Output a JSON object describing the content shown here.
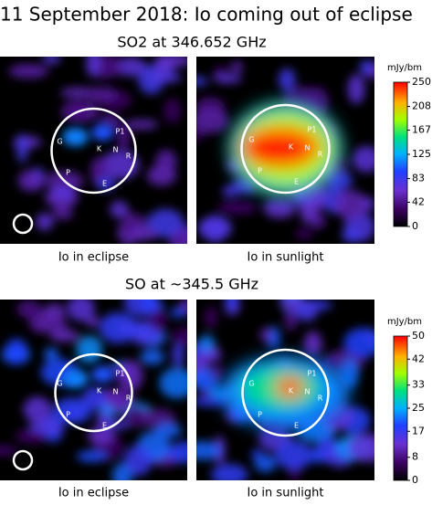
{
  "title": "11 September 2018: Io coming out of eclipse",
  "rows": [
    {
      "heading": "SO2 at 346.652 GHz",
      "unit": "mJy/bm",
      "lim": [
        0,
        250
      ],
      "ticks": [
        0,
        42,
        83,
        125,
        167,
        208,
        250
      ],
      "panels": [
        {
          "caption": "Io in eclipse",
          "labels": [
            "G",
            "K",
            "N",
            "R",
            "P1",
            "P",
            "E"
          ]
        },
        {
          "caption": "Io in sunlight",
          "labels": [
            "G",
            "K",
            "N",
            "R",
            "P1",
            "P",
            "E"
          ]
        }
      ]
    },
    {
      "heading": "SO at ~345.5 GHz",
      "unit": "mJy/bm",
      "lim": [
        0,
        50
      ],
      "ticks": [
        0,
        8,
        17,
        25,
        33,
        42,
        50
      ],
      "panels": [
        {
          "caption": "Io in eclipse",
          "labels": [
            "G",
            "K",
            "N",
            "R",
            "P1",
            "P",
            "E"
          ]
        },
        {
          "caption": "Io in sunlight",
          "labels": [
            "G",
            "K",
            "N",
            "R",
            "P1",
            "P",
            "E"
          ]
        }
      ]
    }
  ]
}
